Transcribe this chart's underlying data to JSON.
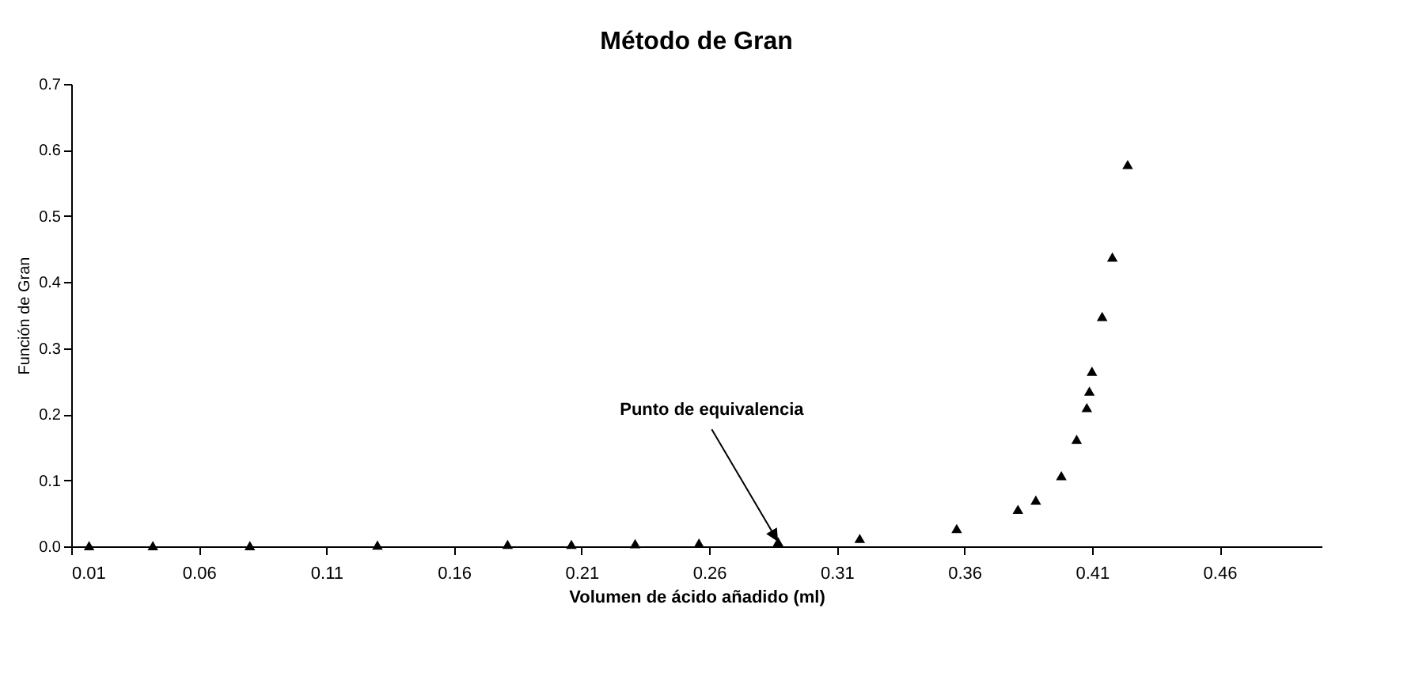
{
  "chart_data": {
    "type": "scatter",
    "title": "Método de Gran",
    "xlabel": "Volumen de ácido añadido (ml)",
    "ylabel": "Función de Gran",
    "x": [
      0.017,
      0.042,
      0.08,
      0.13,
      0.181,
      0.206,
      0.231,
      0.256,
      0.287,
      0.319,
      0.357,
      0.381,
      0.388,
      0.398,
      0.404,
      0.408,
      0.409,
      0.41,
      0.414,
      0.418,
      0.424
    ],
    "series": [
      {
        "color": "#000000",
        "values": [
          0.001,
          0.001,
          0.001,
          0.002,
          0.003,
          0.003,
          0.004,
          0.005,
          0.007,
          0.012,
          0.027,
          0.056,
          0.07,
          0.107,
          0.162,
          0.21,
          0.235,
          0.265,
          0.348,
          0.438,
          0.578
        ]
      }
    ],
    "xlim": [
      0.01,
      0.5
    ],
    "xticks": [
      0.01,
      0.06,
      0.11,
      0.16,
      0.21,
      0.26,
      0.31,
      0.36,
      0.41,
      0.46
    ],
    "ylim": [
      0,
      0.7
    ],
    "yticks": [
      {
        "value": 0,
        "label": "0.0"
      },
      0.1,
      0.2,
      0.3,
      0.4,
      0.5,
      0.6,
      0.7
    ],
    "marker": "triangle",
    "grid": false,
    "annotations": [
      {
        "text": "Punto de equivalencia",
        "x": 0.287,
        "y": 0.007
      }
    ]
  }
}
